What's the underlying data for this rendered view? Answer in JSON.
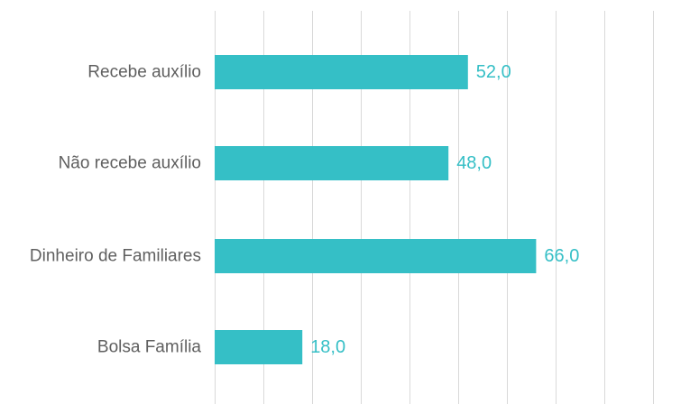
{
  "chart_data": {
    "type": "bar",
    "orientation": "horizontal",
    "categories": [
      "Recebe auxílio",
      "Não recebe auxílio",
      "Dinheiro de Familiares",
      "Bolsa Família"
    ],
    "values": [
      52.0,
      48.0,
      66.0,
      18.0
    ],
    "value_labels": [
      "52,0",
      "48,0",
      "66,0",
      "18,0"
    ],
    "xlim": [
      0,
      90
    ],
    "x_grid_step": 10,
    "grid": true,
    "legend": "none",
    "title": "",
    "xlabel": "",
    "ylabel": ""
  },
  "colors": {
    "bar": "#35bfc6",
    "value_label": "#35bfc6",
    "grid": "#d9d9d9",
    "category_label": "#5f5f5f"
  }
}
